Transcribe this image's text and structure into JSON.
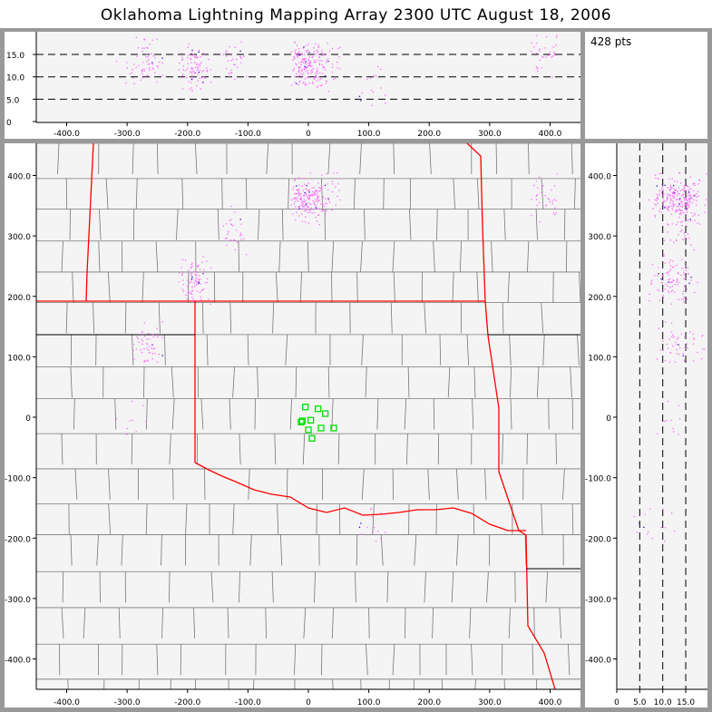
{
  "title": "Oklahoma Lightning Mapping Array   2300 UTC  August 18, 2006",
  "point_count": "428 pts",
  "colors": {
    "points": "#ff66ff",
    "points_dense": "#3300cc",
    "state_border": "#ff0000",
    "county_border": "#777777",
    "station": "#00e000",
    "plot_bg": "#f4f4f4"
  },
  "chart_data": [
    {
      "type": "scatter",
      "panel": "altitude-vs-east-west",
      "xlim": [
        -450,
        450
      ],
      "ylim": [
        0,
        20
      ],
      "xticks": [
        "-400.0",
        "-300.0",
        "-200.0",
        "-100.0",
        "0",
        "100.0",
        "200.0",
        "300.0",
        "400.0"
      ],
      "yticks": [
        "0",
        "5.0",
        "10.0",
        "15.0"
      ],
      "gridlines_y": [
        5,
        10,
        15
      ]
    },
    {
      "type": "scatter",
      "panel": "plan-view-map",
      "xlim": [
        -450,
        450
      ],
      "ylim": [
        -450,
        450
      ],
      "xticks": [
        "-400.0",
        "-300.0",
        "-200.0",
        "-100.0",
        "0",
        "100.0",
        "200.0",
        "300.0",
        "400.0"
      ],
      "yticks": [
        "400.0",
        "300.0",
        "200.0",
        "100.0",
        "0",
        "-100.0",
        "-200.0",
        "-300.0",
        "-400.0"
      ],
      "stations": [
        [
          -5,
          17
        ],
        [
          16,
          14
        ],
        [
          28,
          6
        ],
        [
          -10,
          -6
        ],
        [
          4,
          -5
        ],
        [
          0,
          -21
        ],
        [
          21,
          -18
        ],
        [
          42,
          -18
        ],
        [
          6,
          -35
        ],
        [
          -12,
          -8
        ]
      ],
      "clusters": [
        {
          "x": -5,
          "y": 360,
          "alt": 13,
          "n": 150
        },
        {
          "x": 25,
          "y": 370,
          "alt": 12,
          "n": 50
        },
        {
          "x": -190,
          "y": 230,
          "alt": 12,
          "n": 90
        },
        {
          "x": -265,
          "y": 120,
          "alt": 14,
          "n": 50
        },
        {
          "x": 110,
          "y": -185,
          "alt": 8,
          "n": 15
        },
        {
          "x": -125,
          "y": 310,
          "alt": 14,
          "n": 30
        },
        {
          "x": -290,
          "y": 0,
          "alt": 11,
          "n": 10
        },
        {
          "x": 390,
          "y": 360,
          "alt": 15,
          "n": 33
        }
      ]
    },
    {
      "type": "scatter",
      "panel": "north-south-vs-altitude",
      "xlim": [
        0,
        20
      ],
      "ylim": [
        -450,
        450
      ],
      "xticks": [
        "0",
        "5.0",
        "10.0",
        "15.0"
      ],
      "yticks": [
        "400.0",
        "300.0",
        "200.0",
        "100.0",
        "0",
        "-100.0",
        "-200.0",
        "-300.0",
        "-400.0"
      ],
      "gridlines_x": [
        5,
        10,
        15
      ]
    }
  ]
}
